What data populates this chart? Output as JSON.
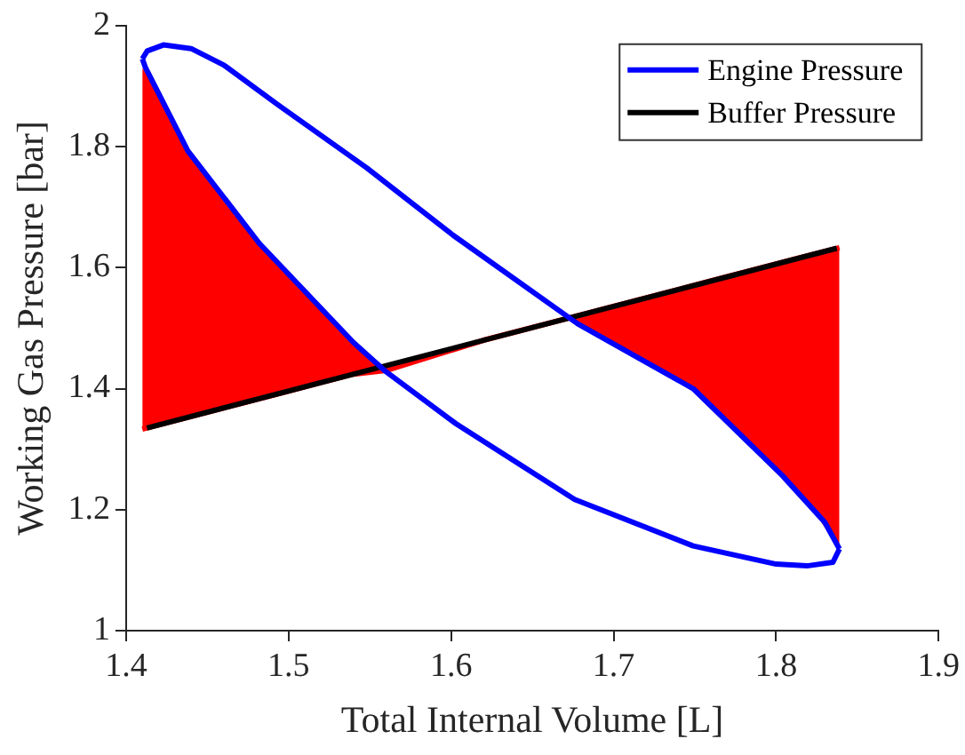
{
  "chart_data": {
    "type": "line",
    "xlabel": "Total Internal Volume [L]",
    "ylabel": "Working Gas Pressure [bar]",
    "xlim": [
      1.4,
      1.9
    ],
    "xticks": [
      1.4,
      1.5,
      1.6,
      1.7,
      1.8,
      1.9
    ],
    "ylim": [
      1,
      2
    ],
    "yticks": [
      1,
      1.2,
      1.4,
      1.6,
      1.8,
      2
    ],
    "grid": false,
    "legend": "top right",
    "marker": "none",
    "line_style": "solid",
    "series": [
      {
        "color": "#ff0000",
        "x": [
          1.41,
          1.42,
          1.44,
          1.46,
          1.48,
          1.5,
          1.52,
          1.54,
          1.56,
          1.62,
          1.676,
          1.7,
          1.72,
          1.74,
          1.76,
          1.78,
          1.8,
          1.82,
          1.839
        ],
        "values": [
          1.333,
          1.34,
          1.354,
          1.368,
          1.382,
          1.396,
          1.41,
          1.424,
          1.43,
          1.48,
          1.519,
          1.536,
          1.55,
          1.564,
          1.578,
          1.592,
          1.606,
          1.62,
          1.633
        ],
        "lower": [
          1.333,
          1.34,
          1.354,
          1.368,
          1.382,
          1.396,
          1.41,
          1.424,
          1.43,
          null,
          1.513,
          1.475,
          1.445,
          1.414,
          1.375,
          1.32,
          1.267,
          1.21,
          1.135
        ],
        "upper": [
          1.93,
          1.89,
          1.785,
          1.71,
          1.646,
          1.59,
          1.53,
          1.476,
          1.43,
          null,
          1.519,
          1.536,
          1.55,
          1.564,
          1.578,
          1.592,
          1.606,
          1.62,
          1.633
        ]
      },
      {
        "name": "Engine Pressure",
        "color": "#0000ff",
        "x": [
          1.41,
          1.413,
          1.423,
          1.44,
          1.46,
          1.493,
          1.548,
          1.601,
          1.678,
          1.749,
          1.804,
          1.83,
          1.839
        ],
        "values": [
          1.945,
          1.958,
          1.968,
          1.962,
          1.935,
          1.87,
          1.765,
          1.654,
          1.507,
          1.4,
          1.256,
          1.179,
          1.135
        ]
      },
      {
        "color": "#0000ff",
        "x": [
          1.41,
          1.412,
          1.438,
          1.482,
          1.54,
          1.559,
          1.603,
          1.676,
          1.749,
          1.8,
          1.819,
          1.835,
          1.839
        ],
        "values": [
          1.945,
          1.93,
          1.793,
          1.64,
          1.476,
          1.43,
          1.342,
          1.217,
          1.14,
          1.11,
          1.107,
          1.113,
          1.135
        ]
      },
      {
        "name": "Buffer Pressure",
        "color": "#000000",
        "x": [
          1.4128,
          1.8374
        ],
        "values": [
          1.335,
          1.632
        ]
      }
    ]
  }
}
